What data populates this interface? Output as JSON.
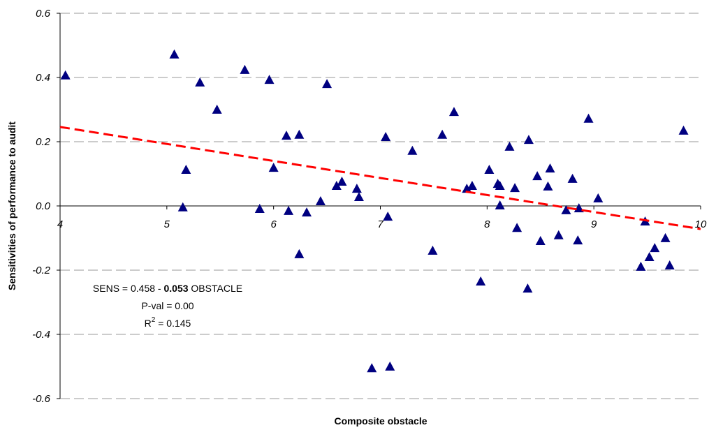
{
  "chart_data": {
    "type": "scatter",
    "x_label": "Composite obstacle",
    "y_label": "Sensitivities of performance to audit",
    "xlim": [
      4,
      10
    ],
    "xticks": [
      4,
      5,
      6,
      7,
      8,
      9,
      10
    ],
    "ylim": [
      -0.6,
      0.6
    ],
    "yticks": [
      -0.6,
      -0.4,
      -0.2,
      {
        "value": 0,
        "label": "0.0"
      },
      0.2,
      0.4,
      0.6
    ],
    "grid": true,
    "color": "#000080",
    "x": [
      4.05,
      5.07,
      5.31,
      5.47,
      5.18,
      5.15,
      5.73,
      5.96,
      6.0,
      5.87,
      6.12,
      6.24,
      6.14,
      6.31,
      6.24,
      6.44,
      6.5,
      6.59,
      6.64,
      6.78,
      6.8,
      6.92,
      7.09,
      7.05,
      7.07,
      7.3,
      7.49,
      7.58,
      7.69,
      7.81,
      7.86,
      7.94,
      8.02,
      8.1,
      8.12,
      8.12,
      8.21,
      8.26,
      8.28,
      8.38,
      8.39,
      8.47,
      8.5,
      8.57,
      8.59,
      8.67,
      8.74,
      8.8,
      8.85,
      8.86,
      8.95,
      9.04,
      9.44,
      9.48,
      9.52,
      9.57,
      9.67,
      9.71,
      9.84
    ],
    "values": [
      0.405,
      0.47,
      0.383,
      0.298,
      0.111,
      -0.006,
      0.422,
      0.391,
      0.117,
      -0.011,
      0.217,
      0.22,
      -0.017,
      -0.022,
      -0.152,
      0.013,
      0.378,
      0.061,
      0.074,
      0.052,
      0.026,
      -0.507,
      -0.502,
      0.213,
      -0.035,
      0.17,
      -0.141,
      0.22,
      0.291,
      0.052,
      0.061,
      -0.237,
      0.111,
      0.067,
      0.061,
      0.0,
      0.183,
      0.054,
      -0.07,
      -0.259,
      0.204,
      0.091,
      -0.111,
      0.059,
      0.115,
      -0.093,
      -0.015,
      0.083,
      -0.109,
      -0.009,
      0.27,
      0.022,
      -0.191,
      -0.05,
      -0.161,
      -0.133,
      -0.102,
      -0.187,
      0.233
    ],
    "trendline": {
      "x": [
        4,
        10
      ],
      "values": [
        0.246,
        -0.072
      ],
      "color": "#ff0000"
    },
    "annotation": {
      "equation": [
        "SENS = 0.458 - ",
        "0.053",
        " OBSTACLE"
      ],
      "pval": "P-val = 0.00",
      "r2": [
        "R",
        "2",
        " = 0.145"
      ]
    }
  }
}
